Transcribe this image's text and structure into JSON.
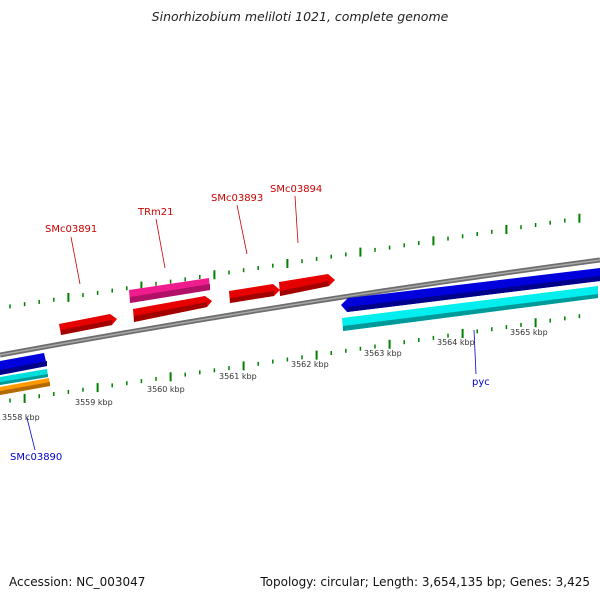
{
  "title": "Sinorhizobium meliloti 1021, complete genome",
  "accession": "Accession: NC_003047",
  "stats": "Topology: circular; Length: 3,654,135 bp; Genes: 3,425",
  "scale": {
    "labels": [
      "3558 kbp",
      "3559 kbp",
      "3560 kbp",
      "3561 kbp",
      "3562 kbp",
      "3563 kbp",
      "3564 kbp",
      "3565 kbp"
    ]
  },
  "genes": [
    {
      "label": "SMc03891",
      "strand": "forward",
      "color": "#e00000",
      "label_color": "#cc0000"
    },
    {
      "label": "TRm21",
      "strand": "forward",
      "color": "#ee1c8c",
      "label_color": "#cc0000"
    },
    {
      "label": "",
      "strand": "forward",
      "color": "#e00000",
      "label_color": "#cc0000"
    },
    {
      "label": "SMc03893",
      "strand": "forward",
      "color": "#e00000",
      "label_color": "#cc0000"
    },
    {
      "label": "SMc03894",
      "strand": "forward",
      "color": "#e00000",
      "label_color": "#cc0000"
    },
    {
      "label": "pyc",
      "strand": "reverse",
      "color": "#0000dd",
      "label_color": "#0000cc"
    },
    {
      "label": "",
      "strand": "reverse",
      "color": "#00eeee",
      "label_color": "#0000cc"
    },
    {
      "label": "SMc03890",
      "strand": "reverse",
      "color": "#0000dd",
      "label_color": "#0000cc"
    },
    {
      "label": "",
      "strand": "reverse",
      "color": "#00dddd",
      "label_color": "#0000cc"
    },
    {
      "label": "",
      "strand": "reverse",
      "color": "#ff8c00",
      "label_color": "#0000cc"
    }
  ],
  "colors": {
    "backbone": "#808080",
    "ticks": "#008000"
  }
}
